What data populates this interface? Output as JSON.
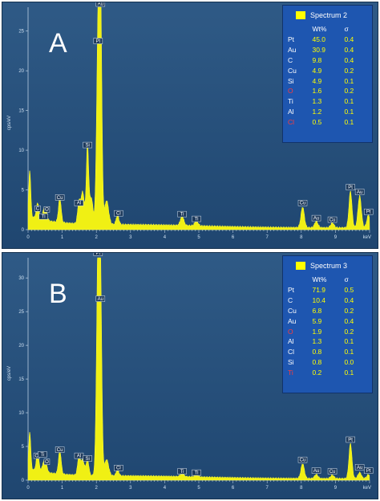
{
  "panels": [
    {
      "letter": "A",
      "legend": {
        "title": "Spectrum 2",
        "swatch_color": "#ffff00",
        "col_wt": "Wt%",
        "col_sigma": "σ",
        "rows": [
          {
            "el": "Pt",
            "wt": "45.0",
            "sigma": "0.4",
            "color": "#ffffff"
          },
          {
            "el": "Au",
            "wt": "30.9",
            "sigma": "0.4",
            "color": "#ffffff"
          },
          {
            "el": "C",
            "wt": "9.8",
            "sigma": "0.4",
            "color": "#ffffff"
          },
          {
            "el": "Cu",
            "wt": "4.9",
            "sigma": "0.2",
            "color": "#ffffff"
          },
          {
            "el": "Si",
            "wt": "4.9",
            "sigma": "0.1",
            "color": "#ffffff"
          },
          {
            "el": "O",
            "wt": "1.6",
            "sigma": "0.2",
            "color": "#ff3b3b"
          },
          {
            "el": "Ti",
            "wt": "1.3",
            "sigma": "0.1",
            "color": "#ffffff"
          },
          {
            "el": "Al",
            "wt": "1.2",
            "sigma": "0.1",
            "color": "#ffffff"
          },
          {
            "el": "Cl",
            "wt": "0.5",
            "sigma": "0.1",
            "color": "#ff3b3b"
          }
        ]
      },
      "chart_data": {
        "type": "line",
        "ylabel": "cps/eV",
        "xlabel": "keV",
        "xlim": [
          0,
          10
        ],
        "ylim": [
          0,
          28
        ],
        "xticks": [
          0,
          1,
          2,
          3,
          4,
          5,
          6,
          7,
          8,
          9
        ],
        "yticks": [
          0,
          5,
          10,
          15,
          20,
          25
        ],
        "peaks": [
          {
            "x": 0.05,
            "y": 5.8,
            "w": 0.03
          },
          {
            "x": 0.28,
            "y": 2.0,
            "w": 0.04
          },
          {
            "x": 0.45,
            "y": 1.0,
            "w": 0.04
          },
          {
            "x": 0.52,
            "y": 1.3,
            "w": 0.04
          },
          {
            "x": 0.93,
            "y": 3.1,
            "w": 0.04
          },
          {
            "x": 1.49,
            "y": 2.6,
            "w": 0.04
          },
          {
            "x": 1.6,
            "y": 4.0,
            "w": 0.05
          },
          {
            "x": 1.74,
            "y": 9.8,
            "w": 0.035
          },
          {
            "x": 1.85,
            "y": 3.3,
            "w": 0.05
          },
          {
            "x": 2.05,
            "y": 23.0,
            "w": 0.045
          },
          {
            "x": 2.12,
            "y": 27.5,
            "w": 0.04
          },
          {
            "x": 2.3,
            "y": 3.0,
            "w": 0.06
          },
          {
            "x": 2.62,
            "y": 1.2,
            "w": 0.04
          },
          {
            "x": 4.51,
            "y": 1.2,
            "w": 0.05
          },
          {
            "x": 4.93,
            "y": 0.6,
            "w": 0.05
          },
          {
            "x": 8.04,
            "y": 2.6,
            "w": 0.05
          },
          {
            "x": 8.44,
            "y": 0.8,
            "w": 0.05
          },
          {
            "x": 8.91,
            "y": 0.6,
            "w": 0.05
          },
          {
            "x": 9.44,
            "y": 4.6,
            "w": 0.045
          },
          {
            "x": 9.71,
            "y": 4.0,
            "w": 0.05
          },
          {
            "x": 9.97,
            "y": 1.6,
            "w": 0.05
          }
        ],
        "labels": [
          {
            "t": "C",
            "x": 0.28,
            "y": 2.3
          },
          {
            "t": "Ti",
            "x": 0.45,
            "y": 1.3
          },
          {
            "t": "O",
            "x": 0.55,
            "y": 2.2
          },
          {
            "t": "Cu",
            "x": 0.93,
            "y": 3.7
          },
          {
            "t": "Al",
            "x": 1.49,
            "y": 3.0
          },
          {
            "t": "Si",
            "x": 1.74,
            "y": 10.3
          },
          {
            "t": "Pt",
            "x": 2.05,
            "y": 23.4
          },
          {
            "t": "Au",
            "x": 2.12,
            "y": 28.1
          },
          {
            "t": "Cl",
            "x": 2.65,
            "y": 1.7
          },
          {
            "t": "Ti",
            "x": 4.51,
            "y": 1.6
          },
          {
            "t": "Ti",
            "x": 4.93,
            "y": 1.0
          },
          {
            "t": "Cu",
            "x": 8.04,
            "y": 3.0
          },
          {
            "t": "Au",
            "x": 8.44,
            "y": 1.1
          },
          {
            "t": "Cu",
            "x": 8.91,
            "y": 0.9
          },
          {
            "t": "Pt",
            "x": 9.44,
            "y": 5.0
          },
          {
            "t": "Au",
            "x": 9.71,
            "y": 4.4
          },
          {
            "t": "Pt",
            "x": 9.97,
            "y": 1.9
          }
        ]
      }
    },
    {
      "letter": "B",
      "legend": {
        "title": "Spectrum 3",
        "swatch_color": "#ffff00",
        "col_wt": "Wt%",
        "col_sigma": "σ",
        "rows": [
          {
            "el": "Pt",
            "wt": "71.9",
            "sigma": "0.5",
            "color": "#ffffff"
          },
          {
            "el": "C",
            "wt": "10.4",
            "sigma": "0.4",
            "color": "#ffffff"
          },
          {
            "el": "Cu",
            "wt": "6.8",
            "sigma": "0.2",
            "color": "#ffffff"
          },
          {
            "el": "Au",
            "wt": "5.9",
            "sigma": "0.4",
            "color": "#ffffff"
          },
          {
            "el": "O",
            "wt": "1.9",
            "sigma": "0.2",
            "color": "#ff3b3b"
          },
          {
            "el": "Al",
            "wt": "1.3",
            "sigma": "0.1",
            "color": "#ffffff"
          },
          {
            "el": "Cl",
            "wt": "0.8",
            "sigma": "0.1",
            "color": "#ffffff"
          },
          {
            "el": "Si",
            "wt": "0.8",
            "sigma": "0.0",
            "color": "#ffffff"
          },
          {
            "el": "Ti",
            "wt": "0.2",
            "sigma": "0.1",
            "color": "#ff3b3b"
          }
        ]
      },
      "chart_data": {
        "type": "line",
        "ylabel": "cps/eV",
        "xlabel": "keV",
        "xlim": [
          0,
          10
        ],
        "ylim": [
          0,
          33
        ],
        "xticks": [
          0,
          1,
          2,
          3,
          4,
          5,
          6,
          7,
          8,
          9
        ],
        "yticks": [
          0,
          5,
          10,
          15,
          20,
          25,
          30
        ],
        "peaks": [
          {
            "x": 0.05,
            "y": 5.5,
            "w": 0.03
          },
          {
            "x": 0.28,
            "y": 2.6,
            "w": 0.04
          },
          {
            "x": 0.45,
            "y": 1.2,
            "w": 0.04
          },
          {
            "x": 0.52,
            "y": 1.4,
            "w": 0.04
          },
          {
            "x": 0.93,
            "y": 3.5,
            "w": 0.04
          },
          {
            "x": 1.49,
            "y": 2.7,
            "w": 0.04
          },
          {
            "x": 1.6,
            "y": 2.2,
            "w": 0.05
          },
          {
            "x": 1.74,
            "y": 2.4,
            "w": 0.04
          },
          {
            "x": 2.05,
            "y": 33.0,
            "w": 0.045
          },
          {
            "x": 2.12,
            "y": 26.0,
            "w": 0.04
          },
          {
            "x": 2.3,
            "y": 2.4,
            "w": 0.06
          },
          {
            "x": 2.62,
            "y": 0.9,
            "w": 0.04
          },
          {
            "x": 4.51,
            "y": 0.5,
            "w": 0.05
          },
          {
            "x": 4.93,
            "y": 0.3,
            "w": 0.05
          },
          {
            "x": 8.04,
            "y": 2.2,
            "w": 0.05
          },
          {
            "x": 8.44,
            "y": 0.6,
            "w": 0.05
          },
          {
            "x": 8.91,
            "y": 0.5,
            "w": 0.05
          },
          {
            "x": 9.44,
            "y": 5.2,
            "w": 0.045
          },
          {
            "x": 9.71,
            "y": 0.9,
            "w": 0.05
          },
          {
            "x": 9.97,
            "y": 0.6,
            "w": 0.05
          }
        ],
        "labels": [
          {
            "t": "C",
            "x": 0.25,
            "y": 3.2
          },
          {
            "t": "Ti",
            "x": 0.42,
            "y": 3.4
          },
          {
            "t": "O",
            "x": 0.55,
            "y": 2.3
          },
          {
            "t": "Cu",
            "x": 0.93,
            "y": 4.1
          },
          {
            "t": "Al",
            "x": 1.49,
            "y": 3.2
          },
          {
            "t": "Si",
            "x": 1.74,
            "y": 2.8
          },
          {
            "t": "Pt",
            "x": 2.05,
            "y": 33.3
          },
          {
            "t": "Au",
            "x": 2.12,
            "y": 26.5
          },
          {
            "t": "Cl",
            "x": 2.65,
            "y": 1.4
          },
          {
            "t": "Ti",
            "x": 4.51,
            "y": 0.9
          },
          {
            "t": "Ti",
            "x": 4.93,
            "y": 0.7
          },
          {
            "t": "Cu",
            "x": 8.04,
            "y": 2.6
          },
          {
            "t": "Au",
            "x": 8.44,
            "y": 1.0
          },
          {
            "t": "Cu",
            "x": 8.91,
            "y": 0.9
          },
          {
            "t": "Pt",
            "x": 9.44,
            "y": 5.6
          },
          {
            "t": "Au",
            "x": 9.71,
            "y": 1.5
          },
          {
            "t": "Pt",
            "x": 9.97,
            "y": 1.0
          }
        ]
      }
    }
  ]
}
